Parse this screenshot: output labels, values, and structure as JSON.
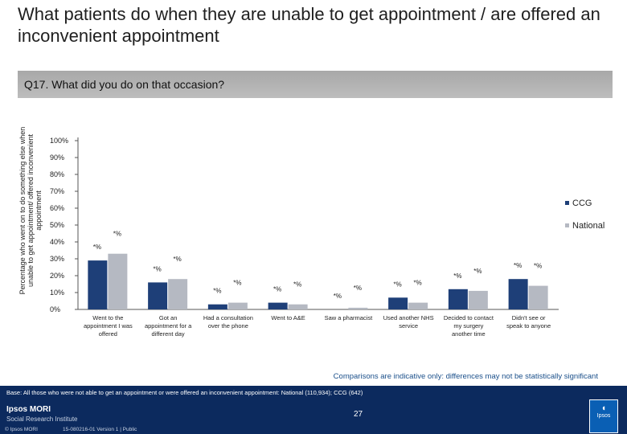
{
  "title": "What patients do when they are unable to get appointment  / are offered an inconvenient appointment",
  "question": "Q17. What did you do on that occasion?",
  "comparison_note": "Comparisons are indicative only: differences may not be statistically significant",
  "footer": {
    "base": "Base: All those who were not able to get an appointment or were offered an inconvenient appointment: National (110,934); CCG (642)",
    "logo_line1": "Ipsos MORI",
    "logo_line2": "Social Research Institute",
    "copyright": "© Ipsos MORI",
    "version": "15-080216-01 Version 1 | Public",
    "page_number": "27"
  },
  "colors": {
    "ccg": "#1e3f78",
    "national": "#b5b9c2",
    "footer": "#0c2a5e",
    "note": "#1a4f8a"
  },
  "chart_data": {
    "type": "bar",
    "ylabel": "Percentage who went on to do something else when unable to get appointment/ offered inconvenient appointment",
    "ylim": [
      0,
      100
    ],
    "yticks": [
      "0%",
      "10%",
      "20%",
      "30%",
      "40%",
      "50%",
      "60%",
      "70%",
      "80%",
      "90%",
      "100%"
    ],
    "categories": [
      [
        "Went to the",
        "appointment I was",
        "offered"
      ],
      [
        "Got an",
        "appointment for a",
        "different day"
      ],
      [
        "Had a consultation",
        "over the phone"
      ],
      [
        "Went to A&E"
      ],
      [
        "Saw a pharmacist"
      ],
      [
        "Used another NHS",
        "service"
      ],
      [
        "Decided to contact",
        "my surgery",
        "another time"
      ],
      [
        "Didn't see or",
        "speak to anyone"
      ]
    ],
    "series": [
      {
        "name": "CCG",
        "values": [
          29,
          16,
          3,
          4,
          0,
          7,
          12,
          18
        ],
        "labels": [
          "*%",
          "*%",
          "*%",
          "*%",
          "*%",
          "*%",
          "*%",
          "*%"
        ]
      },
      {
        "name": "National",
        "values": [
          33,
          18,
          4,
          3,
          1,
          4,
          11,
          14
        ],
        "labels": [
          "*%",
          "*%",
          "*%",
          "*%",
          "*%",
          "*%",
          "*%",
          "*%"
        ]
      }
    ],
    "legend_position": "right",
    "grid": false
  }
}
